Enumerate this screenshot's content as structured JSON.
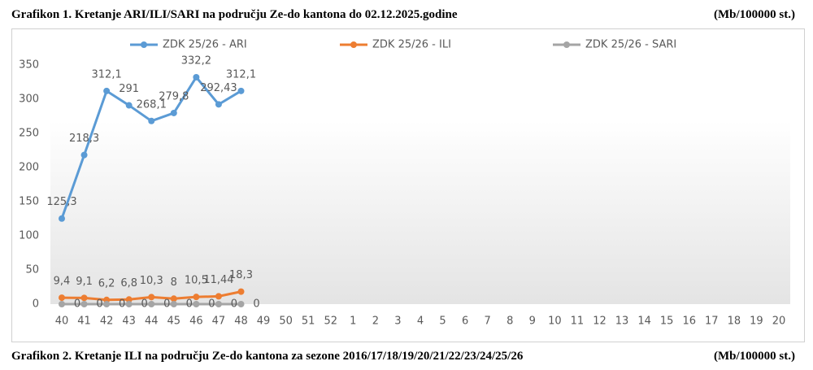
{
  "page": {
    "title": "Grafikon 1. Kretanje ARI/ILI/SARI na području Ze-do kantona do 02.12.2025.godine",
    "unit": "(Mb/100000 st.)",
    "next_title": "Grafikon 2. Kretanje ILI na području Ze-do kantona za sezone 2016/17/18/19/20/21/22/23/24/25/26",
    "next_unit": "(Mb/100000 st.)"
  },
  "chart_data": {
    "type": "line",
    "categories": [
      "40",
      "41",
      "42",
      "43",
      "44",
      "45",
      "46",
      "47",
      "48",
      "49",
      "50",
      "51",
      "52",
      "1",
      "2",
      "3",
      "4",
      "5",
      "6",
      "7",
      "8",
      "9",
      "10",
      "11",
      "12",
      "13",
      "14",
      "15",
      "16",
      "17",
      "18",
      "19",
      "20"
    ],
    "series": [
      {
        "name": "ZDK 25/26 - ARI",
        "color": "#5b9bd5",
        "values": [
          125.3,
          218.3,
          312.1,
          291,
          268.1,
          279.8,
          332.2,
          292.43,
          312.1,
          null,
          null,
          null,
          null,
          null,
          null,
          null,
          null,
          null,
          null,
          null,
          null,
          null,
          null,
          null,
          null,
          null,
          null,
          null,
          null,
          null,
          null,
          null,
          null
        ],
        "value_labels": [
          "125,3",
          "218,3",
          "312,1",
          "291",
          "268,1",
          "279,8",
          "332,2",
          "292,43",
          "312,1",
          null,
          null,
          null,
          null,
          null,
          null,
          null,
          null,
          null,
          null,
          null,
          null,
          null,
          null,
          null,
          null,
          null,
          null,
          null,
          null,
          null,
          null,
          null,
          null
        ]
      },
      {
        "name": "ZDK 25/26 - ILI",
        "color": "#ed7d31",
        "values": [
          9.4,
          9.1,
          6.2,
          6.8,
          10.3,
          8,
          10.5,
          11.44,
          18.3,
          null,
          null,
          null,
          null,
          null,
          null,
          null,
          null,
          null,
          null,
          null,
          null,
          null,
          null,
          null,
          null,
          null,
          null,
          null,
          null,
          null,
          null,
          null,
          null
        ],
        "value_labels": [
          "9,4",
          "9,1",
          "6,2",
          "6,8",
          "10,3",
          "8",
          "10,5",
          "11,44",
          "18,3",
          null,
          null,
          null,
          null,
          null,
          null,
          null,
          null,
          null,
          null,
          null,
          null,
          null,
          null,
          null,
          null,
          null,
          null,
          null,
          null,
          null,
          null,
          null,
          null
        ]
      },
      {
        "name": "ZDK 25/26 - SARI",
        "color": "#a5a5a5",
        "values": [
          0,
          0,
          0,
          0,
          0,
          0,
          0,
          0,
          0,
          null,
          null,
          null,
          null,
          null,
          null,
          null,
          null,
          null,
          null,
          null,
          null,
          null,
          null,
          null,
          null,
          null,
          null,
          null,
          null,
          null,
          null,
          null,
          null
        ]
      }
    ],
    "ylim": [
      0,
      350
    ],
    "yticks": [
      0,
      50,
      100,
      150,
      200,
      250,
      300,
      350
    ]
  }
}
